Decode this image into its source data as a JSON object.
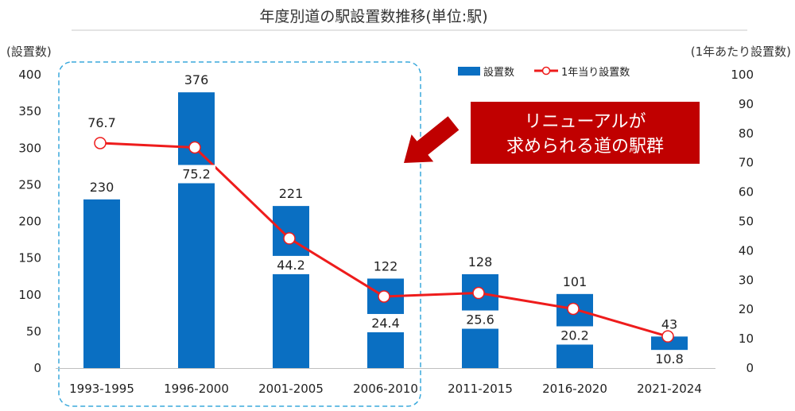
{
  "chart_data": {
    "type": "bar",
    "title": "年度別道の駅設置数推移(単位:駅)",
    "ylabel_left": "(設置数)",
    "ylabel_right": "(1年あたり設置数)",
    "categories": [
      "1993-1995",
      "1996-2000",
      "2001-2005",
      "2006-2010",
      "2011-2015",
      "2016-2020",
      "2021-2024"
    ],
    "ylim_left": [
      0,
      400
    ],
    "yticks_left": [
      "0",
      "50",
      "100",
      "150",
      "200",
      "250",
      "300",
      "350",
      "400"
    ],
    "ylim_right": [
      0,
      100
    ],
    "yticks_right": [
      "0",
      "10",
      "20",
      "30",
      "40",
      "50",
      "60",
      "70",
      "80",
      "90",
      "100"
    ],
    "grid": false,
    "legend_position": "top-right",
    "series": [
      {
        "name": "設置数",
        "type": "bar",
        "axis": "left",
        "color": "#0a6fc2",
        "values": [
          230,
          376,
          221,
          122,
          128,
          101,
          43
        ],
        "labels": [
          "230",
          "376",
          "221",
          "122",
          "128",
          "101",
          "43"
        ]
      },
      {
        "name": "1年当り設置数",
        "type": "line",
        "axis": "right",
        "color": "#ee1c1c",
        "values": [
          76.7,
          75.2,
          44.2,
          24.4,
          25.6,
          20.2,
          10.8
        ],
        "labels": [
          "76.7",
          "75.2",
          "44.2",
          "24.4",
          "25.6",
          "20.2",
          "10.8"
        ]
      }
    ],
    "annotation": {
      "lines": [
        "リニューアルが",
        "求められる道の駅群"
      ],
      "box_color": "#c00000",
      "highlight_categories": [
        "1993-1995",
        "1996-2000",
        "2001-2005",
        "2006-2010"
      ]
    }
  }
}
